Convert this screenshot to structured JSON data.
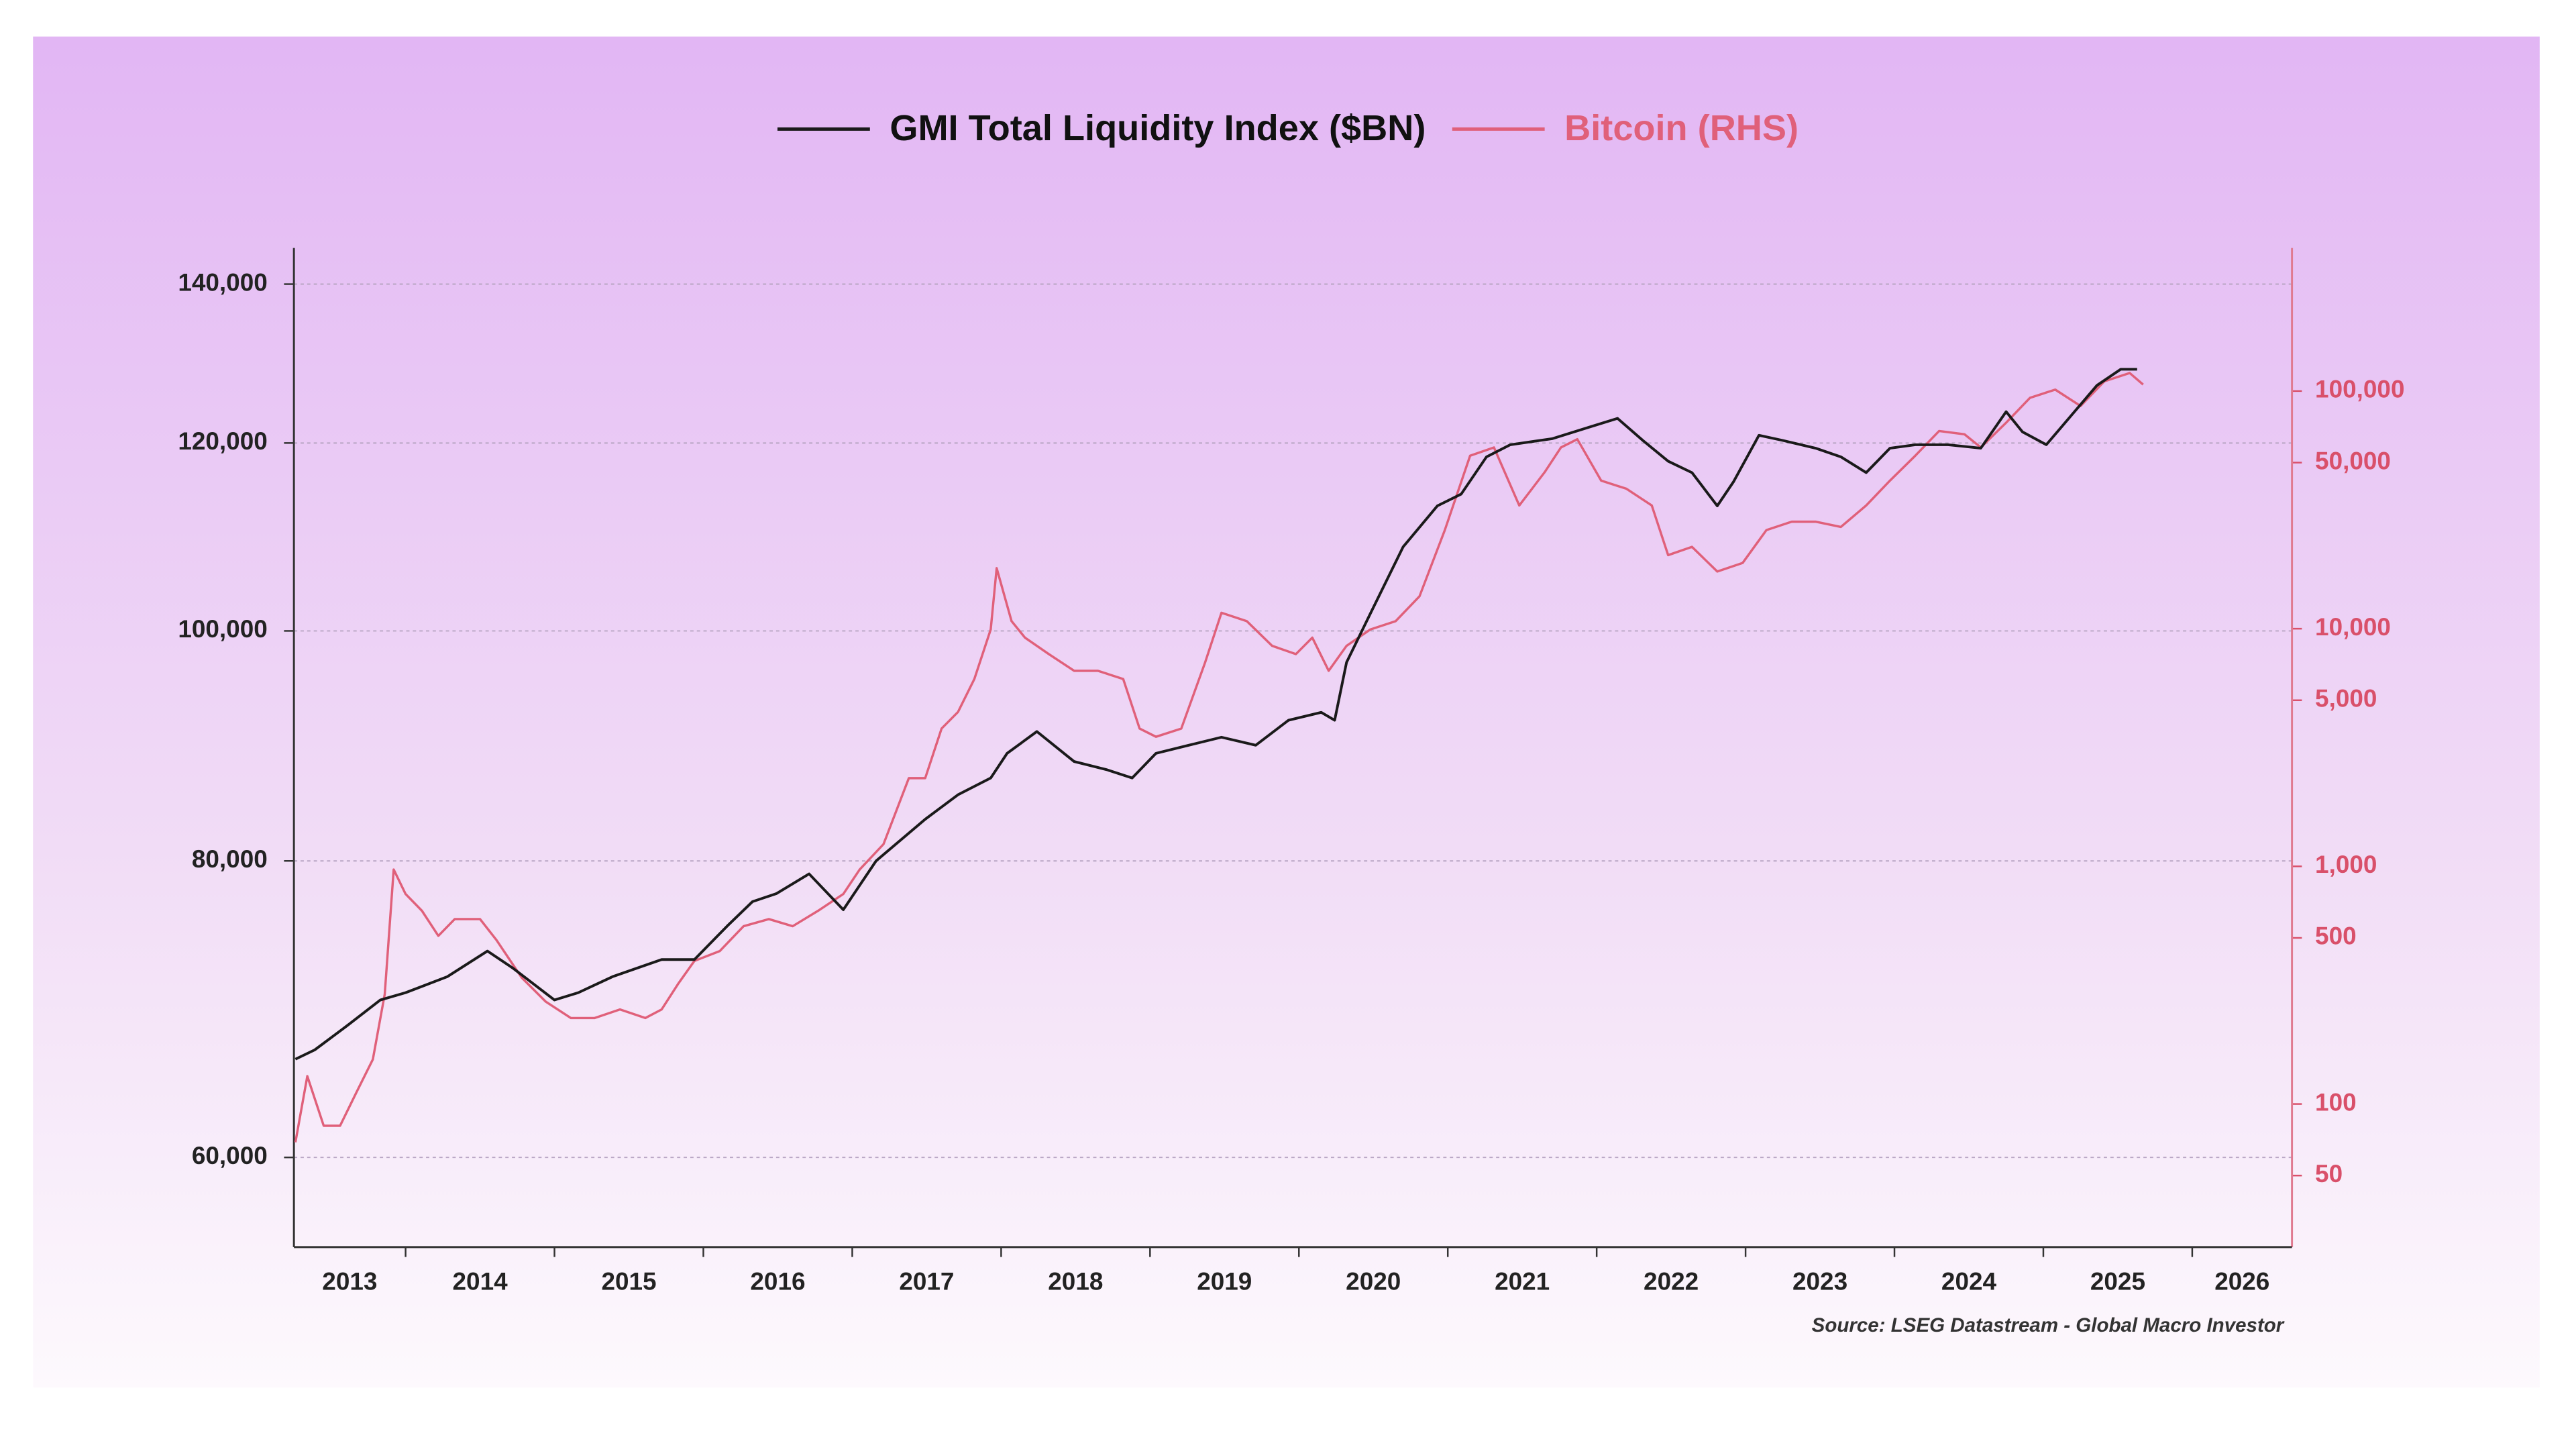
{
  "chart_data": {
    "type": "line",
    "legend_position": "top",
    "source": "Source: LSEG Datastream - Global Macro Investor",
    "xlim": [
      2013.25,
      2026.67
    ],
    "xticks": [
      2014,
      2015,
      2016,
      2017,
      2018,
      2019,
      2020,
      2021,
      2022,
      2023,
      2024,
      2025,
      2026
    ],
    "year_labels": [
      "2013",
      "2014",
      "2015",
      "2016",
      "2017",
      "2018",
      "2019",
      "2020",
      "2021",
      "2022",
      "2023",
      "2024",
      "2025",
      "2026"
    ],
    "ylim": [
      55000,
      145000
    ],
    "y_log": true,
    "yticks": [
      {
        "value": 60000,
        "label": "60,000"
      },
      {
        "value": 80000,
        "label": "80,000"
      },
      {
        "value": 100000,
        "label": "100,000"
      },
      {
        "value": 120000,
        "label": "120,000"
      },
      {
        "value": 140000,
        "label": "140,000"
      }
    ],
    "y2lim": [
      25,
      400000
    ],
    "y2_log": true,
    "y2ticks": [
      50,
      100,
      500,
      {
        "value": 1000,
        "label": "1,000"
      },
      {
        "value": 5000,
        "label": "5,000"
      },
      {
        "value": 10000,
        "label": "10,000"
      },
      {
        "value": 50000,
        "label": "50,000"
      },
      {
        "value": 100000,
        "label": "100,000"
      }
    ],
    "grid": true,
    "series": [
      {
        "name": "GMI Total Liquidity Index ($BN)",
        "color": "#1a1a1a",
        "x": [
          2013.26,
          2013.39,
          2013.61,
          2013.83,
          2014.0,
          2014.28,
          2014.55,
          2014.72,
          2015.0,
          2015.16,
          2015.39,
          2015.72,
          2015.94,
          2016.16,
          2016.33,
          2016.49,
          2016.71,
          2016.94,
          2017.16,
          2017.49,
          2017.71,
          2017.93,
          2018.04,
          2018.24,
          2018.49,
          2018.71,
          2018.88,
          2019.04,
          2019.26,
          2019.48,
          2019.71,
          2019.93,
          2020.15,
          2020.24,
          2020.32,
          2020.48,
          2020.7,
          2020.93,
          2021.09,
          2021.26,
          2021.42,
          2021.7,
          2021.92,
          2022.14,
          2022.31,
          2022.48,
          2022.64,
          2022.81,
          2022.92,
          2023.09,
          2023.25,
          2023.47,
          2023.64,
          2023.81,
          2023.97,
          2024.14,
          2024.36,
          2024.58,
          2024.75,
          2024.86,
          2025.02,
          2025.19,
          2025.36,
          2025.52,
          2025.63
        ],
        "values": [
          66000,
          66600,
          68200,
          69900,
          70400,
          71500,
          73300,
          72100,
          69900,
          70400,
          71500,
          72700,
          72700,
          75100,
          76900,
          77500,
          79000,
          76300,
          80000,
          83300,
          85300,
          86700,
          88800,
          90700,
          88100,
          87400,
          86700,
          88800,
          89500,
          90200,
          89500,
          91700,
          92400,
          91700,
          97000,
          101700,
          108500,
          112900,
          114200,
          118400,
          119800,
          120500,
          121700,
          122900,
          120300,
          117900,
          116600,
          112900,
          115600,
          120900,
          120300,
          119400,
          118400,
          116600,
          119400,
          119800,
          119800,
          119400,
          123700,
          121300,
          119800,
          123300,
          126900,
          128900,
          128900
        ]
      },
      {
        "name": "Bitcoin (RHS)",
        "color": "#e0607a",
        "axis": "y2",
        "x": [
          2013.26,
          2013.34,
          2013.45,
          2013.56,
          2013.67,
          2013.78,
          2013.86,
          2013.92,
          2014.0,
          2014.11,
          2014.22,
          2014.33,
          2014.5,
          2014.61,
          2014.78,
          2014.94,
          2015.11,
          2015.27,
          2015.44,
          2015.61,
          2015.72,
          2015.83,
          2015.94,
          2016.11,
          2016.27,
          2016.44,
          2016.6,
          2016.77,
          2016.94,
          2017.05,
          2017.21,
          2017.38,
          2017.49,
          2017.6,
          2017.71,
          2017.82,
          2017.93,
          2017.97,
          2018.07,
          2018.16,
          2018.32,
          2018.49,
          2018.65,
          2018.82,
          2018.93,
          2019.04,
          2019.21,
          2019.37,
          2019.48,
          2019.65,
          2019.82,
          2019.98,
          2020.09,
          2020.2,
          2020.32,
          2020.48,
          2020.65,
          2020.81,
          2020.98,
          2021.15,
          2021.31,
          2021.48,
          2021.65,
          2021.76,
          2021.87,
          2022.03,
          2022.2,
          2022.37,
          2022.48,
          2022.64,
          2022.81,
          2022.98,
          2023.14,
          2023.31,
          2023.47,
          2023.64,
          2023.81,
          2023.97,
          2024.14,
          2024.3,
          2024.47,
          2024.58,
          2024.75,
          2024.91,
          2025.08,
          2025.25,
          2025.41,
          2025.58,
          2025.67
        ],
        "values": [
          69,
          131,
          81,
          81,
          112,
          154,
          290,
          970,
          765,
          650,
          510,
          600,
          600,
          490,
          340,
          270,
          230,
          230,
          250,
          230,
          250,
          320,
          400,
          440,
          560,
          600,
          560,
          650,
          765,
          970,
          1240,
          2350,
          2350,
          3800,
          4460,
          6140,
          9930,
          17980,
          10760,
          9170,
          7820,
          6650,
          6650,
          6140,
          3800,
          3510,
          3800,
          7210,
          11670,
          10760,
          8470,
          7820,
          9170,
          6650,
          8470,
          9930,
          10760,
          13690,
          26000,
          53460,
          57900,
          33000,
          45500,
          57900,
          62700,
          42000,
          38800,
          33000,
          20400,
          22100,
          17400,
          18900,
          26000,
          28200,
          28200,
          26800,
          33000,
          42000,
          53460,
          67900,
          65800,
          57900,
          73600,
          93600,
          101400,
          86500,
          109900,
          119100,
          106500
        ]
      }
    ]
  }
}
